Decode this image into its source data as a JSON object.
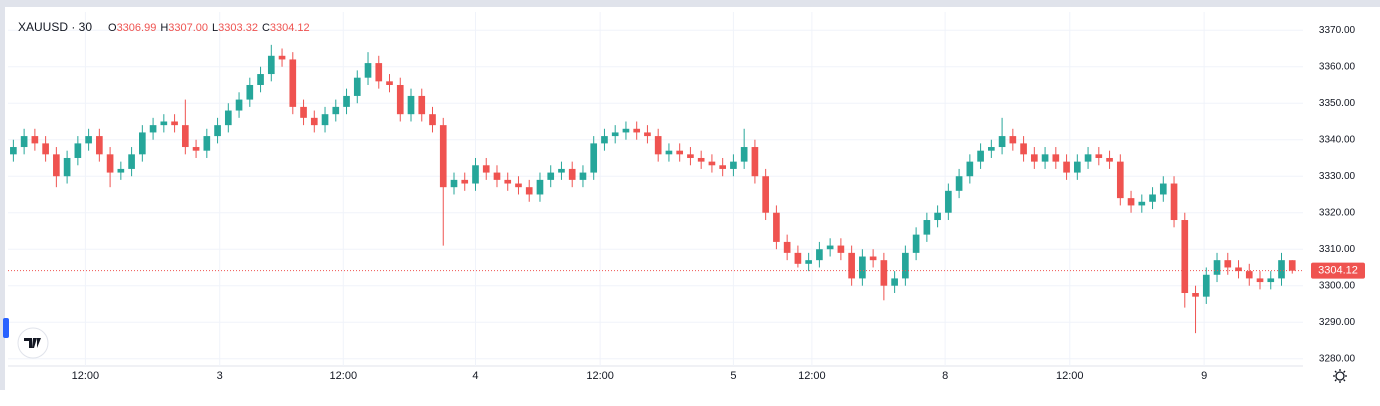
{
  "chart_data": {
    "type": "candlestick",
    "title": "XAUUSD · 30",
    "ohlc_letters": [
      "O",
      "H",
      "L",
      "C"
    ],
    "last_labels": [
      "3306.99",
      "3307.00",
      "3303.32",
      "3304.12"
    ],
    "up_color": "#26a69a",
    "down_color": "#ef5350",
    "grid": true,
    "open": [
      3336,
      3338,
      3341,
      3339,
      3336,
      3330,
      3335,
      3339,
      3341,
      3336,
      3331,
      3332,
      3336,
      3342,
      3344,
      3345,
      3344,
      3338,
      3337,
      3341,
      3344,
      3348,
      3351,
      3355,
      3358,
      3363,
      3362,
      3349,
      3346,
      3344,
      3347,
      3349,
      3352,
      3357,
      3361,
      3356,
      3355,
      3347,
      3352,
      3347,
      3344,
      3327,
      3329,
      3328,
      3333,
      3331,
      3329,
      3328,
      3327,
      3325,
      3329,
      3331,
      3332,
      3329,
      3331,
      3339,
      3341,
      3342,
      3343,
      3342,
      3341,
      3336,
      3337,
      3336,
      3335,
      3334,
      3333,
      3332,
      3334,
      3338,
      3330,
      3320,
      3312,
      3309,
      3306,
      3307,
      3310,
      3311,
      3309,
      3302,
      3308,
      3307,
      3300,
      3302,
      3309,
      3314,
      3318,
      3320,
      3326,
      3330,
      3334,
      3337,
      3338,
      3341,
      3339,
      3336,
      3334,
      3336,
      3334,
      3331,
      3334,
      3336,
      3335,
      3334,
      3324,
      3322,
      3323,
      3325,
      3328,
      3318,
      3298,
      3297,
      3303,
      3307,
      3305,
      3304,
      3302,
      3301,
      3302,
      3306.99
    ],
    "high": [
      3340,
      3343,
      3343,
      3341,
      3338,
      3337,
      3341,
      3343,
      3343,
      3338,
      3334,
      3338,
      3344,
      3346,
      3347,
      3347,
      3351,
      3340,
      3343,
      3346,
      3350,
      3353,
      3357,
      3360,
      3366,
      3365,
      3364,
      3351,
      3348,
      3349,
      3351,
      3354,
      3359,
      3364,
      3363,
      3358,
      3357,
      3354,
      3354,
      3349,
      3346,
      3331,
      3331,
      3335,
      3335,
      3333,
      3331,
      3330,
      3329,
      3331,
      3333,
      3334,
      3334,
      3333,
      3341,
      3343,
      3344,
      3345,
      3345,
      3344,
      3343,
      3339,
      3339,
      3338,
      3337,
      3336,
      3335,
      3336,
      3343,
      3340,
      3332,
      3322,
      3314,
      3311,
      3309,
      3312,
      3313,
      3313,
      3311,
      3310,
      3310,
      3309,
      3304,
      3311,
      3316,
      3320,
      3322,
      3328,
      3332,
      3336,
      3339,
      3340,
      3346,
      3343,
      3341,
      3338,
      3338,
      3338,
      3336,
      3336,
      3338,
      3338,
      3337,
      3336,
      3326,
      3325,
      3327,
      3330,
      3330,
      3320,
      3300,
      3305,
      3309,
      3309,
      3307,
      3306,
      3304,
      3304,
      3309,
      3307.0
    ],
    "low": [
      3334,
      3336,
      3337,
      3334,
      3327,
      3328,
      3333,
      3337,
      3334,
      3327,
      3329,
      3330,
      3334,
      3340,
      3342,
      3342,
      3336,
      3335,
      3335,
      3339,
      3342,
      3346,
      3349,
      3353,
      3356,
      3360,
      3347,
      3344,
      3342,
      3342,
      3345,
      3347,
      3350,
      3355,
      3354,
      3353,
      3345,
      3345,
      3345,
      3342,
      3311,
      3325,
      3326,
      3326,
      3329,
      3327,
      3326,
      3325,
      3323,
      3323,
      3327,
      3329,
      3327,
      3327,
      3329,
      3337,
      3339,
      3340,
      3340,
      3339,
      3334,
      3334,
      3334,
      3333,
      3332,
      3331,
      3330,
      3330,
      3332,
      3328,
      3318,
      3310,
      3307,
      3305,
      3304,
      3305,
      3308,
      3307,
      3300,
      3300,
      3305,
      3296,
      3298,
      3300,
      3307,
      3312,
      3316,
      3318,
      3324,
      3328,
      3332,
      3335,
      3336,
      3337,
      3334,
      3332,
      3332,
      3332,
      3329,
      3329,
      3332,
      3333,
      3332,
      3322,
      3320,
      3320,
      3321,
      3323,
      3316,
      3294,
      3287,
      3295,
      3301,
      3303,
      3302,
      3300,
      3299,
      3299,
      3300,
      3303.32
    ],
    "close": [
      3338,
      3341,
      3339,
      3336,
      3330,
      3335,
      3339,
      3341,
      3336,
      3331,
      3332,
      3336,
      3342,
      3344,
      3345,
      3344,
      3338,
      3337,
      3341,
      3344,
      3348,
      3351,
      3355,
      3358,
      3363,
      3362,
      3349,
      3346,
      3344,
      3347,
      3349,
      3352,
      3357,
      3361,
      3356,
      3355,
      3347,
      3352,
      3347,
      3344,
      3327,
      3329,
      3328,
      3333,
      3331,
      3329,
      3328,
      3327,
      3325,
      3329,
      3331,
      3332,
      3329,
      3331,
      3339,
      3341,
      3342,
      3343,
      3342,
      3341,
      3336,
      3337,
      3336,
      3335,
      3334,
      3333,
      3332,
      3334,
      3338,
      3330,
      3320,
      3312,
      3309,
      3306,
      3307,
      3310,
      3311,
      3309,
      3302,
      3308,
      3307,
      3300,
      3302,
      3309,
      3314,
      3318,
      3320,
      3326,
      3330,
      3334,
      3337,
      3338,
      3341,
      3339,
      3336,
      3334,
      3336,
      3334,
      3331,
      3334,
      3336,
      3335,
      3334,
      3324,
      3322,
      3323,
      3325,
      3328,
      3318,
      3298,
      3297,
      3303,
      3307,
      3305,
      3304,
      3302,
      3301,
      3302,
      3307,
      3304.12
    ],
    "xlim": [
      -0.5,
      120
    ],
    "xticks": [
      {
        "value": 6.7,
        "label": "12:00"
      },
      {
        "value": 19.2,
        "label": "3"
      },
      {
        "value": 30.7,
        "label": "12:00"
      },
      {
        "value": 43.0,
        "label": "4"
      },
      {
        "value": 54.6,
        "label": "12:00"
      },
      {
        "value": 67.0,
        "label": "5"
      },
      {
        "value": 74.3,
        "label": "12:00"
      },
      {
        "value": 86.7,
        "label": "8"
      },
      {
        "value": 98.3,
        "label": "12:00"
      },
      {
        "value": 110.8,
        "label": "9"
      }
    ],
    "ylim": [
      3278,
      3375
    ],
    "yticks": [
      {
        "value": 3280,
        "label": "3280.00"
      },
      {
        "value": 3290,
        "label": "3290.00"
      },
      {
        "value": 3300,
        "label": "3300.00"
      },
      {
        "value": 3310,
        "label": "3310.00"
      },
      {
        "value": 3320,
        "label": "3320.00"
      },
      {
        "value": 3330,
        "label": "3330.00"
      },
      {
        "value": 3340,
        "label": "3340.00"
      },
      {
        "value": 3350,
        "label": "3350.00"
      },
      {
        "value": 3360,
        "label": "3360.00"
      },
      {
        "value": 3370,
        "label": "3370.00"
      }
    ]
  }
}
